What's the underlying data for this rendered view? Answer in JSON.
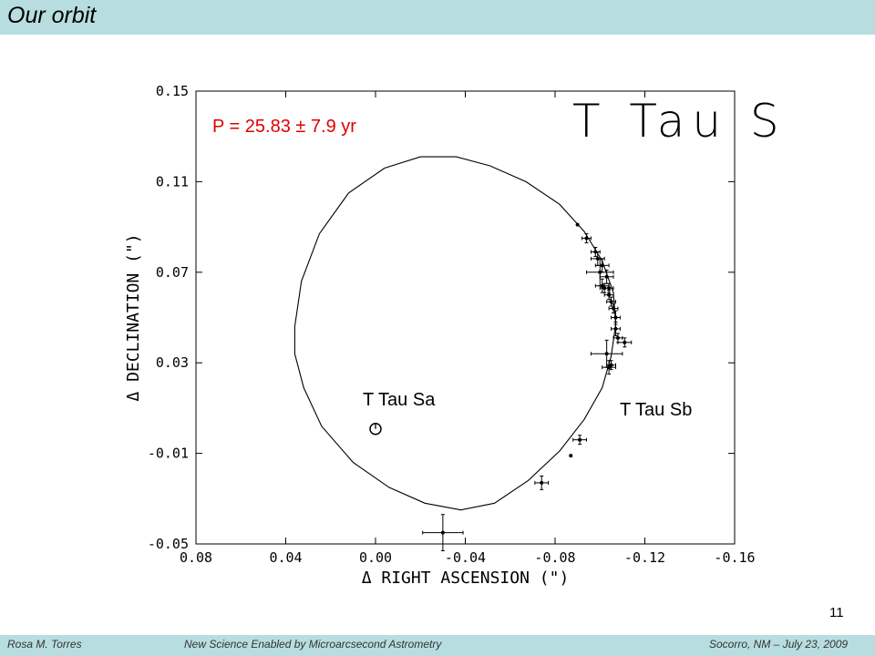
{
  "slide": {
    "title": "Our orbit",
    "page_number": "11",
    "footer": {
      "left": "Rosa M. Torres",
      "center": "New Science Enabled by Microarcsecond Astrometry",
      "right": "Socorro, NM – July 23, 2009"
    },
    "colors": {
      "band": "#b8dde0",
      "period_text": "#e00000"
    }
  },
  "chart_data": {
    "type": "scatter",
    "plot_title": "T Tau S",
    "annotation": "P = 25.83 ± 7.9 yr",
    "xlabel": "Δ RIGHT ASCENSION (\")",
    "ylabel": "Δ DECLINATION (\")",
    "xlim": [
      0.08,
      -0.16
    ],
    "ylim": [
      -0.05,
      0.15
    ],
    "xticks": [
      "0.08",
      "0.04",
      "0.00",
      "-0.04",
      "-0.08",
      "-0.12",
      "-0.16"
    ],
    "yticks": [
      "0.15",
      "0.11",
      "0.07",
      "0.03",
      "-0.01",
      "-0.05"
    ],
    "primary": {
      "name": "T Tau Sa",
      "x": 0.0,
      "y": -0.0
    },
    "secondary_label": "T Tau Sb",
    "orbit": {
      "points": [
        [
          0.036,
          0.046
        ],
        [
          0.033,
          0.066
        ],
        [
          0.025,
          0.087
        ],
        [
          0.012,
          0.105
        ],
        [
          -0.004,
          0.116
        ],
        [
          -0.02,
          0.121
        ],
        [
          -0.036,
          0.121
        ],
        [
          -0.051,
          0.117
        ],
        [
          -0.067,
          0.11
        ],
        [
          -0.082,
          0.1
        ],
        [
          -0.093,
          0.088
        ],
        [
          -0.101,
          0.075
        ],
        [
          -0.106,
          0.061
        ],
        [
          -0.107,
          0.047
        ],
        [
          -0.105,
          0.033
        ],
        [
          -0.101,
          0.019
        ],
        [
          -0.093,
          0.005
        ],
        [
          -0.082,
          -0.009
        ],
        [
          -0.068,
          -0.022
        ],
        [
          -0.053,
          -0.032
        ],
        [
          -0.038,
          -0.035
        ],
        [
          -0.022,
          -0.032
        ],
        [
          -0.006,
          -0.025
        ],
        [
          0.01,
          -0.014
        ],
        [
          0.024,
          0.002
        ],
        [
          0.032,
          0.019
        ],
        [
          0.036,
          0.034
        ],
        [
          0.036,
          0.046
        ]
      ]
    },
    "measurements": [
      {
        "x": -0.09,
        "y": 0.091,
        "ex": 0.0,
        "ey": 0.0
      },
      {
        "x": -0.094,
        "y": 0.085,
        "ex": 0.002,
        "ey": 0.002
      },
      {
        "x": -0.098,
        "y": 0.079,
        "ex": 0.002,
        "ey": 0.002
      },
      {
        "x": -0.099,
        "y": 0.076,
        "ex": 0.003,
        "ey": 0.003
      },
      {
        "x": -0.101,
        "y": 0.073,
        "ex": 0.003,
        "ey": 0.003
      },
      {
        "x": -0.1,
        "y": 0.07,
        "ex": 0.006,
        "ey": 0.006
      },
      {
        "x": -0.103,
        "y": 0.068,
        "ex": 0.003,
        "ey": 0.003
      },
      {
        "x": -0.101,
        "y": 0.064,
        "ex": 0.003,
        "ey": 0.003
      },
      {
        "x": -0.102,
        "y": 0.063,
        "ex": 0.002,
        "ey": 0.002
      },
      {
        "x": -0.104,
        "y": 0.063,
        "ex": 0.002,
        "ey": 0.002
      },
      {
        "x": -0.104,
        "y": 0.06,
        "ex": 0.002,
        "ey": 0.002
      },
      {
        "x": -0.105,
        "y": 0.057,
        "ex": 0.002,
        "ey": 0.002
      },
      {
        "x": -0.106,
        "y": 0.054,
        "ex": 0.002,
        "ey": 0.002
      },
      {
        "x": -0.107,
        "y": 0.05,
        "ex": 0.002,
        "ey": 0.003
      },
      {
        "x": -0.107,
        "y": 0.045,
        "ex": 0.002,
        "ey": 0.003
      },
      {
        "x": -0.108,
        "y": 0.041,
        "ex": 0.002,
        "ey": 0.002
      },
      {
        "x": -0.111,
        "y": 0.039,
        "ex": 0.003,
        "ey": 0.002
      },
      {
        "x": -0.103,
        "y": 0.034,
        "ex": 0.007,
        "ey": 0.006
      },
      {
        "x": -0.104,
        "y": 0.028,
        "ex": 0.003,
        "ey": 0.003
      },
      {
        "x": -0.105,
        "y": 0.029,
        "ex": 0.002,
        "ey": 0.002
      },
      {
        "x": -0.091,
        "y": -0.004,
        "ex": 0.003,
        "ey": 0.002
      },
      {
        "x": -0.087,
        "y": -0.011,
        "ex": 0.0,
        "ey": 0.0
      },
      {
        "x": -0.074,
        "y": -0.023,
        "ex": 0.003,
        "ey": 0.003
      },
      {
        "x": -0.03,
        "y": -0.045,
        "ex": 0.009,
        "ey": 0.008
      }
    ]
  }
}
